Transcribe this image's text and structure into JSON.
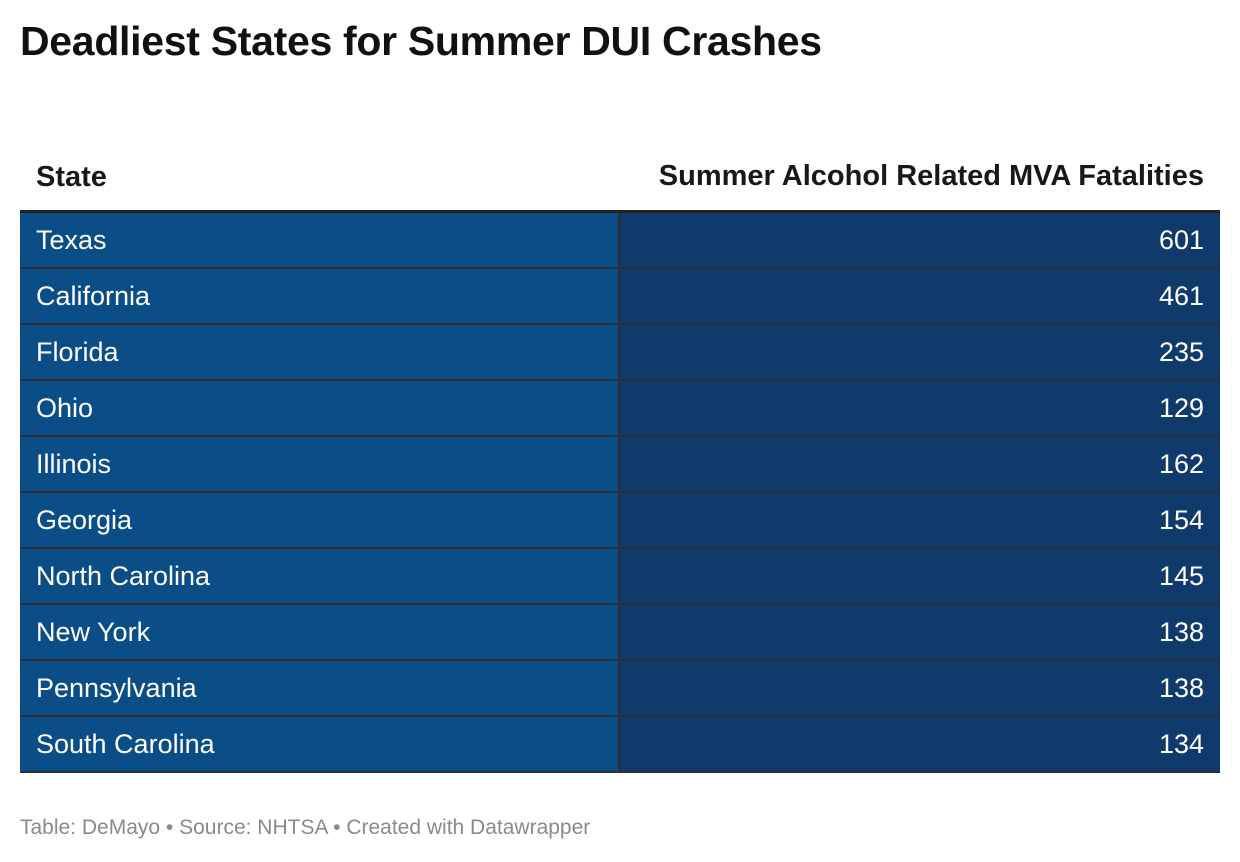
{
  "title": "Deadliest States for Summer DUI Crashes",
  "colors": {
    "state_cell_bg": "#0b4d86",
    "value_cell_bg": "#103a6c",
    "cell_text": "#ffffff",
    "footer_text": "#8a8a8a"
  },
  "chart_data": {
    "type": "table",
    "title": "Deadliest States for Summer DUI Crashes",
    "columns": [
      "State",
      "Summer Alcohol Related MVA Fatalities"
    ],
    "rows": [
      {
        "state": "Texas",
        "value": "601"
      },
      {
        "state": "California",
        "value": "461"
      },
      {
        "state": "Florida",
        "value": "235"
      },
      {
        "state": "Ohio",
        "value": "129"
      },
      {
        "state": "Illinois",
        "value": "162"
      },
      {
        "state": "Georgia",
        "value": "154"
      },
      {
        "state": "North Carolina",
        "value": "145"
      },
      {
        "state": "New York",
        "value": "138"
      },
      {
        "state": "Pennsylvania",
        "value": "138"
      },
      {
        "state": "South Carolina",
        "value": "134"
      }
    ]
  },
  "footer": "Table: DeMayo • Source: NHTSA • Created with Datawrapper"
}
